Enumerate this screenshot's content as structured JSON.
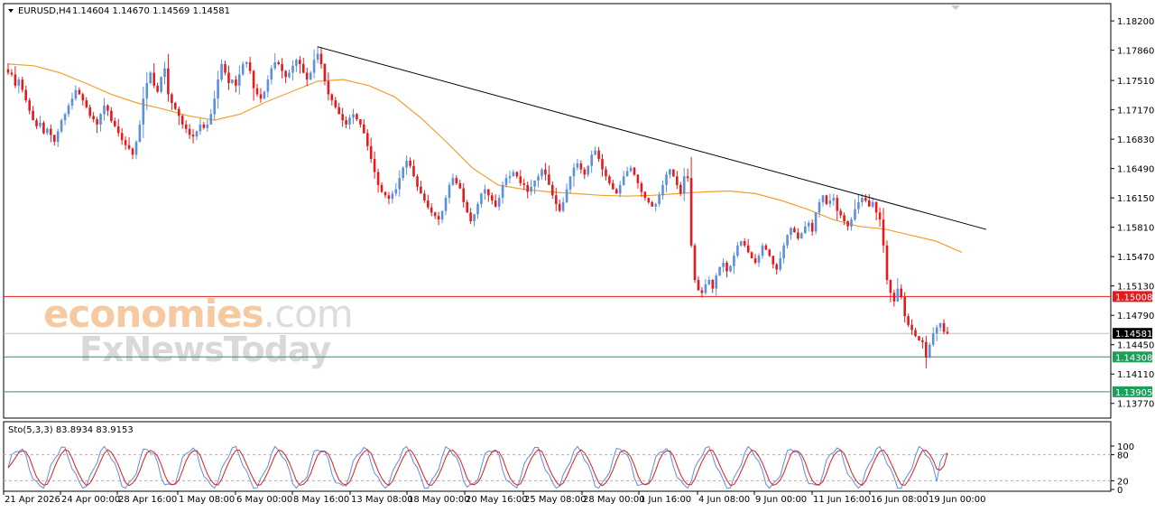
{
  "header": {
    "symbol": "EURUSD,H4",
    "ohlc": "1.14604 1.14670 1.14569 1.14581"
  },
  "watermark": {
    "line1_colored": "economies",
    "line1_suffix": ".com",
    "line2": "FxNewsToday"
  },
  "chart_data": {
    "type": "candlestick",
    "symbol": "EURUSD",
    "timeframe": "H4",
    "ohlc_last": {
      "open": 1.14604,
      "high": 1.1467,
      "low": 1.14569,
      "close": 1.14581
    },
    "y_ticks": [
      "1.18200",
      "1.17860",
      "1.17510",
      "1.17170",
      "1.16830",
      "1.16490",
      "1.16150",
      "1.15810",
      "1.15470",
      "1.15130",
      "1.14790",
      "1.14450",
      "1.14110",
      "1.13770"
    ],
    "y_range": [
      1.136,
      1.184
    ],
    "x_ticks": [
      "21 Apr 2026",
      "24 Apr 00:00",
      "28 Apr 16:00",
      "1 May 08:00",
      "6 May 00:00",
      "8 May 16:00",
      "13 May 08:00",
      "18 May 00:00",
      "20 May 16:00",
      "25 May 08:00",
      "28 May 00:00",
      "1 Jun 16:00",
      "4 Jun 08:00",
      "9 Jun 00:00",
      "11 Jun 16:00",
      "16 Jun 08:00",
      "19 Jun 00:00"
    ],
    "price_levels": [
      {
        "label": "1.15008",
        "value": 1.15008,
        "color": "#e41a1c"
      },
      {
        "label": "1.14581",
        "value": 1.14581,
        "color": "#000000"
      },
      {
        "label": "1.14308",
        "value": 1.14308,
        "color": "#1e9e5a"
      },
      {
        "label": "1.13905",
        "value": 1.13905,
        "color": "#1e9e5a"
      }
    ],
    "trendline": {
      "from": {
        "bar": 87,
        "price": 1.179
      },
      "to": {
        "bar": 270,
        "price": 1.1575
      }
    },
    "bull_color": "#5b8fe0",
    "bear_color": "#e41a1c",
    "ma_color": "#f0a030",
    "ma_path": [
      1.177,
      1.1768,
      1.176,
      1.1748,
      1.1735,
      1.1725,
      1.1718,
      1.171,
      1.1705,
      1.1712,
      1.1726,
      1.1738,
      1.175,
      1.1752,
      1.1745,
      1.1732,
      1.1708,
      1.168,
      1.165,
      1.163,
      1.1625,
      1.1622,
      1.162,
      1.1618,
      1.1617,
      1.1618,
      1.162,
      1.1622,
      1.1623,
      1.162,
      1.1612,
      1.1602,
      1.159,
      1.1582,
      1.1579,
      1.1572,
      1.1565,
      1.1552
    ],
    "closes": [
      1.176,
      1.1758,
      1.1745,
      1.1752,
      1.174,
      1.1728,
      1.1716,
      1.1705,
      1.1698,
      1.1702,
      1.169,
      1.1695,
      1.1688,
      1.168,
      1.1692,
      1.1705,
      1.1712,
      1.1722,
      1.173,
      1.174,
      1.1735,
      1.1728,
      1.172,
      1.171,
      1.1706,
      1.17,
      1.1712,
      1.1722,
      1.1716,
      1.1704,
      1.1698,
      1.169,
      1.1682,
      1.1676,
      1.1672,
      1.1665,
      1.168,
      1.17,
      1.173,
      1.1748,
      1.176,
      1.1745,
      1.1738,
      1.1755,
      1.1765,
      1.1735,
      1.1725,
      1.1718,
      1.171,
      1.17,
      1.1695,
      1.1688,
      1.1686,
      1.1692,
      1.17,
      1.1696,
      1.17,
      1.1712,
      1.173,
      1.1752,
      1.177,
      1.176,
      1.1748,
      1.1752,
      1.1745,
      1.1758,
      1.177,
      1.1772,
      1.1762,
      1.1742,
      1.1735,
      1.173,
      1.1738,
      1.1752,
      1.1765,
      1.1772,
      1.177,
      1.1762,
      1.1755,
      1.176,
      1.1768,
      1.1775,
      1.177,
      1.176,
      1.1752,
      1.176,
      1.1775,
      1.1782,
      1.177,
      1.175,
      1.1735,
      1.1728,
      1.172,
      1.1712,
      1.1705,
      1.17,
      1.1708,
      1.1712,
      1.1706,
      1.17,
      1.169,
      1.1675,
      1.166,
      1.1645,
      1.163,
      1.1622,
      1.1618,
      1.1614,
      1.162,
      1.1625,
      1.1638,
      1.165,
      1.1658,
      1.1652,
      1.164,
      1.1628,
      1.162,
      1.1612,
      1.1604,
      1.1598,
      1.1594,
      1.159,
      1.16,
      1.1615,
      1.163,
      1.1638,
      1.1632,
      1.1626,
      1.161,
      1.1598,
      1.1588,
      1.1596,
      1.1608,
      1.162,
      1.1625,
      1.1618,
      1.1612,
      1.1605,
      1.1615,
      1.163,
      1.1638,
      1.164,
      1.1645,
      1.164,
      1.1632,
      1.163,
      1.1622,
      1.1628,
      1.1635,
      1.164,
      1.1648,
      1.1642,
      1.163,
      1.1618,
      1.1608,
      1.16,
      1.161,
      1.1625,
      1.164,
      1.165,
      1.1655,
      1.1648,
      1.1642,
      1.1652,
      1.1665,
      1.167,
      1.166,
      1.1648,
      1.164,
      1.1632,
      1.1625,
      1.162,
      1.163,
      1.164,
      1.1646,
      1.165,
      1.1642,
      1.1632,
      1.1622,
      1.1615,
      1.161,
      1.1605,
      1.1608,
      1.1618,
      1.163,
      1.1642,
      1.1648,
      1.164,
      1.163,
      1.162,
      1.164,
      1.1638,
      1.156,
      1.152,
      1.1508,
      1.1505,
      1.1515,
      1.152,
      1.151,
      1.1525,
      1.1535,
      1.154,
      1.153,
      1.1536,
      1.1548,
      1.156,
      1.1565,
      1.156,
      1.1552,
      1.1545,
      1.154,
      1.1548,
      1.156,
      1.1555,
      1.1548,
      1.1538,
      1.1532,
      1.1545,
      1.156,
      1.1572,
      1.158,
      1.1575,
      1.1568,
      1.1574,
      1.1582,
      1.1586,
      1.1576,
      1.1598,
      1.161,
      1.1618,
      1.1608,
      1.1612,
      1.1615,
      1.16,
      1.1595,
      1.1588,
      1.1582,
      1.159,
      1.1602,
      1.161,
      1.1615,
      1.1612,
      1.1605,
      1.161,
      1.1598,
      1.159,
      1.156,
      1.152,
      1.1505,
      1.1495,
      1.151,
      1.15,
      1.1478,
      1.1468,
      1.1462,
      1.1455,
      1.145,
      1.1448,
      1.143,
      1.1445,
      1.1458,
      1.1465,
      1.147,
      1.146,
      1.14581
    ],
    "stochastic": {
      "label": "Sto(5,3,3) 83.8934 83.9153",
      "k": 83.8934,
      "d": 83.9153,
      "levels": [
        20,
        80
      ],
      "y_ticks": [
        "100",
        "80",
        "20",
        "0"
      ],
      "main_color": "#5b8fe0",
      "signal_color": "#e41a1c"
    }
  }
}
